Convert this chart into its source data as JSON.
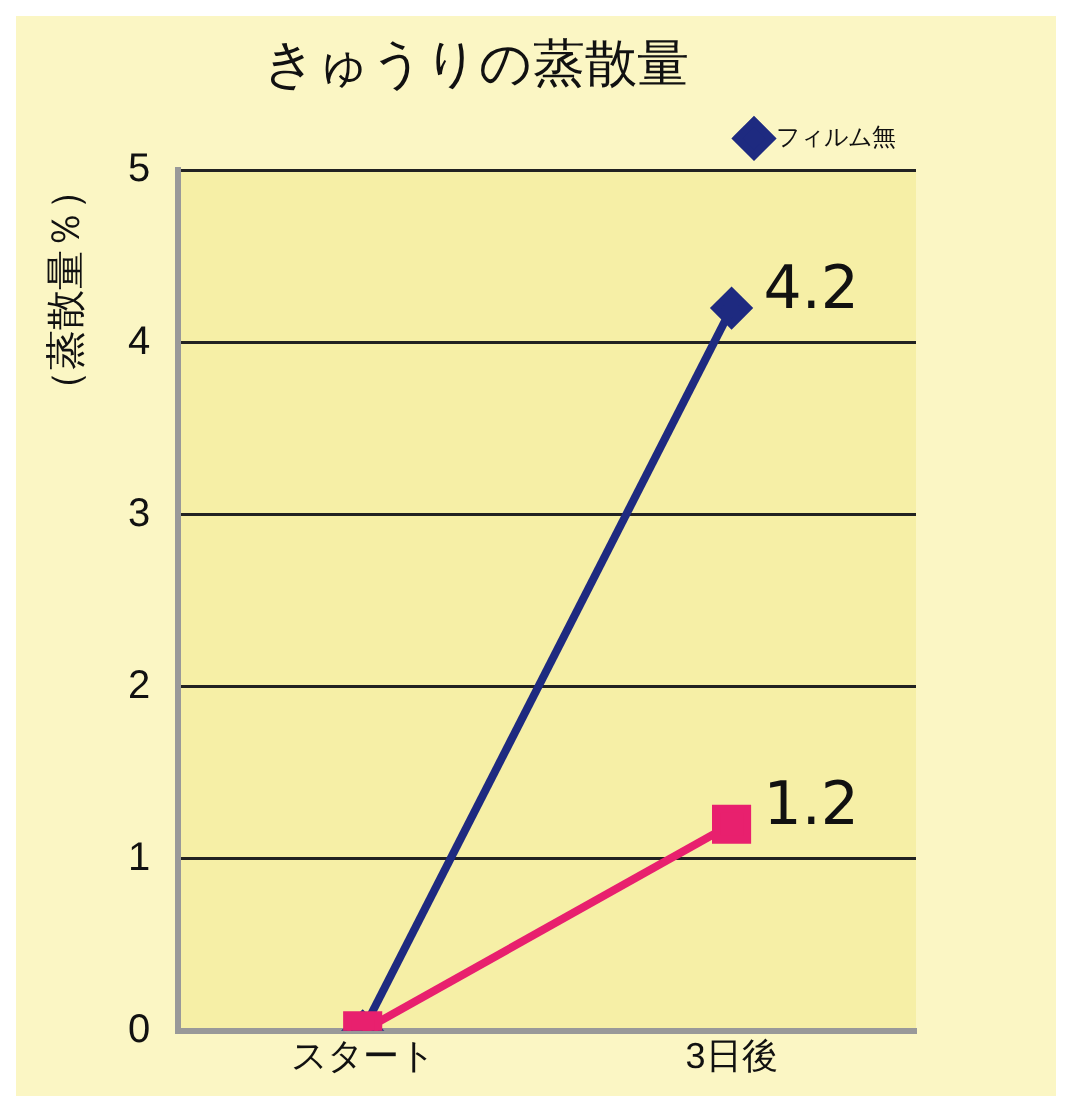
{
  "chart_data": {
    "type": "line",
    "title": "きゅうりの蒸散量",
    "ylabel": "（蒸散量％）",
    "categories": [
      "スタート",
      "3日後"
    ],
    "series": [
      {
        "color": "#e8206e",
        "values": [
          0,
          1.2
        ],
        "marker": "square",
        "value_labels": [
          null,
          "1.2"
        ]
      },
      {
        "name": "フィルム無",
        "color": "#1e2a80",
        "values": [
          0,
          4.2
        ],
        "marker": "diamond",
        "value_labels": [
          null,
          "4.2"
        ]
      }
    ],
    "ylim": [
      0,
      5
    ],
    "yticks": [
      0,
      1,
      2,
      3,
      4,
      5
    ],
    "grid": "y",
    "legend": "top right",
    "line_style": "solid"
  }
}
